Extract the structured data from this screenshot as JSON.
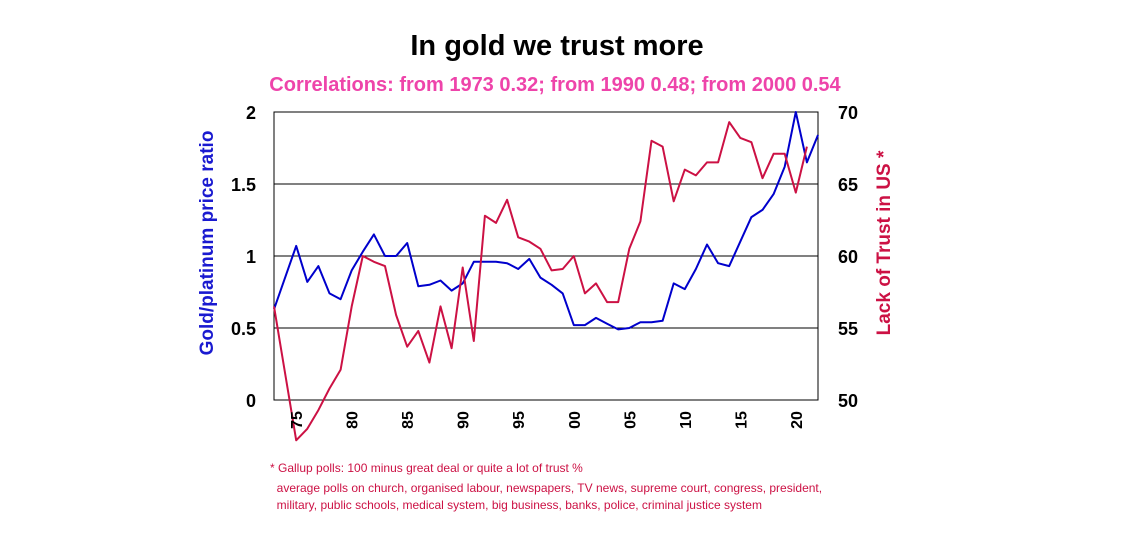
{
  "chart_data": {
    "type": "line",
    "title": "In gold we trust more",
    "subtitle": "Correlations: from 1973 0.32; from 1990 0.48; from 2000  0.54",
    "ylabel": "Gold/platinum price ratio",
    "y2label": "Lack of Trust in US *",
    "xlim": [
      1973,
      2022
    ],
    "ylim": [
      0,
      2
    ],
    "y2lim": [
      50,
      70
    ],
    "yticks": [
      "0",
      "0.5",
      "1",
      "1.5",
      "2"
    ],
    "y2ticks": [
      "50",
      "55",
      "60",
      "65",
      "70"
    ],
    "xticks": [
      {
        "year": 1975,
        "label": "75"
      },
      {
        "year": 1980,
        "label": "80"
      },
      {
        "year": 1985,
        "label": "85"
      },
      {
        "year": 1990,
        "label": "90"
      },
      {
        "year": 1995,
        "label": "95"
      },
      {
        "year": 2000,
        "label": "00"
      },
      {
        "year": 2005,
        "label": "05"
      },
      {
        "year": 2010,
        "label": "10"
      },
      {
        "year": 2015,
        "label": "15"
      },
      {
        "year": 2020,
        "label": "20"
      }
    ],
    "grid": true,
    "series": [
      {
        "axis": "left",
        "color": "#0000cc",
        "points": [
          [
            1973,
            0.63
          ],
          [
            1975,
            1.07
          ],
          [
            1976,
            0.82
          ],
          [
            1977,
            0.93
          ],
          [
            1978,
            0.74
          ],
          [
            1979,
            0.7
          ],
          [
            1980,
            0.9
          ],
          [
            1981,
            1.03
          ],
          [
            1982,
            1.15
          ],
          [
            1983,
            1.0
          ],
          [
            1984,
            1.0
          ],
          [
            1985,
            1.09
          ],
          [
            1986,
            0.79
          ],
          [
            1987,
            0.8
          ],
          [
            1988,
            0.83
          ],
          [
            1989,
            0.76
          ],
          [
            1990,
            0.81
          ],
          [
            1991,
            0.96
          ],
          [
            1992,
            0.96
          ],
          [
            1993,
            0.96
          ],
          [
            1994,
            0.95
          ],
          [
            1995,
            0.91
          ],
          [
            1996,
            0.98
          ],
          [
            1997,
            0.85
          ],
          [
            1998,
            0.8
          ],
          [
            1999,
            0.74
          ],
          [
            2000,
            0.52
          ],
          [
            2001,
            0.52
          ],
          [
            2002,
            0.57
          ],
          [
            2003,
            0.53
          ],
          [
            2004,
            0.49
          ],
          [
            2005,
            0.5
          ],
          [
            2006,
            0.54
          ],
          [
            2007,
            0.54
          ],
          [
            2008,
            0.55
          ],
          [
            2009,
            0.81
          ],
          [
            2010,
            0.77
          ],
          [
            2011,
            0.91
          ],
          [
            2012,
            1.08
          ],
          [
            2013,
            0.95
          ],
          [
            2014,
            0.93
          ],
          [
            2015,
            1.1
          ],
          [
            2016,
            1.27
          ],
          [
            2017,
            1.32
          ],
          [
            2018,
            1.43
          ],
          [
            2019,
            1.62
          ],
          [
            2020,
            2.0
          ],
          [
            2021,
            1.65
          ],
          [
            2022,
            1.84
          ]
        ]
      },
      {
        "axis": "right",
        "color": "#cc1144",
        "points": [
          [
            1973,
            56.5
          ],
          [
            1975,
            47.2
          ],
          [
            1976,
            48.0
          ],
          [
            1977,
            49.3
          ],
          [
            1978,
            50.8
          ],
          [
            1979,
            52.1
          ],
          [
            1980,
            56.5
          ],
          [
            1981,
            60.0
          ],
          [
            1982,
            59.6
          ],
          [
            1983,
            59.3
          ],
          [
            1984,
            55.9
          ],
          [
            1985,
            53.7
          ],
          [
            1986,
            54.8
          ],
          [
            1987,
            52.6
          ],
          [
            1988,
            56.5
          ],
          [
            1989,
            53.6
          ],
          [
            1990,
            59.2
          ],
          [
            1991,
            54.1
          ],
          [
            1992,
            62.8
          ],
          [
            1993,
            62.3
          ],
          [
            1994,
            63.9
          ],
          [
            1995,
            61.3
          ],
          [
            1996,
            61.0
          ],
          [
            1997,
            60.5
          ],
          [
            1998,
            59.0
          ],
          [
            1999,
            59.1
          ],
          [
            2000,
            60.0
          ],
          [
            2001,
            57.4
          ],
          [
            2002,
            58.1
          ],
          [
            2003,
            56.8
          ],
          [
            2004,
            56.8
          ],
          [
            2005,
            60.5
          ],
          [
            2006,
            62.4
          ],
          [
            2007,
            68.0
          ],
          [
            2008,
            67.6
          ],
          [
            2009,
            63.8
          ],
          [
            2010,
            66.0
          ],
          [
            2011,
            65.6
          ],
          [
            2012,
            66.5
          ],
          [
            2013,
            66.5
          ],
          [
            2014,
            69.3
          ],
          [
            2015,
            68.2
          ],
          [
            2016,
            67.9
          ],
          [
            2017,
            65.4
          ],
          [
            2018,
            67.1
          ],
          [
            2019,
            67.1
          ],
          [
            2020,
            64.4
          ],
          [
            2021,
            67.6
          ]
        ]
      }
    ]
  },
  "footnote": {
    "line1": "* Gallup polls: 100 minus great deal or quite a lot of trust %",
    "line2": "  average polls on church, organised labour, newspapers, TV news, supreme court, congress, president,",
    "line3": "  military, public schools, medical system, big business, banks, police, criminal justice system"
  },
  "colors": {
    "title": "#000000",
    "subtitle": "#ee44aa",
    "left_axis": "#1a1ad0",
    "right_axis": "#cc1144",
    "footnote": "#cc1144"
  }
}
